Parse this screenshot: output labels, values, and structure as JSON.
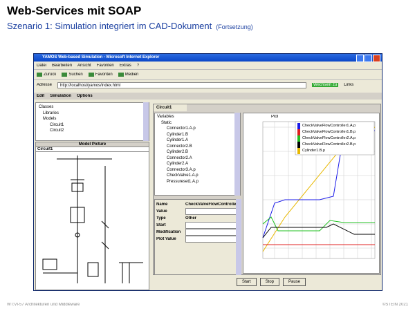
{
  "slide": {
    "title": "Web-Services mit SOAP",
    "subtitle": "Szenario 1: Simulation integriert im CAD-Dokument",
    "subtitle_note": "(Fortsetzung)",
    "footer_left": "WT:VI-57   Architekturen und Middleware",
    "footer_right": "©STEIN 2021"
  },
  "browser": {
    "window_title": "YAMOS Web-based Simulation - Microsoft Internet Explorer",
    "menu": [
      "Datei",
      "Bearbeiten",
      "Ansicht",
      "Favoriten",
      "Extras",
      "?"
    ],
    "toolbar": [
      "Zurück",
      "Suchen",
      "Favoriten",
      "Medien"
    ],
    "address_label": "Adresse",
    "address": "http://localhost/yamos/index.html",
    "go": "Wechseln zu",
    "links": "Links"
  },
  "app": {
    "menu": [
      "Edit",
      "Simulation",
      "Options"
    ],
    "class_tree": [
      "Classes",
      "Libraries",
      "Models",
      "Circuit1",
      "Circuit2"
    ],
    "model_picture": "Model Picture",
    "model_tab": "Circuit1",
    "center_tab": "Circuit1",
    "variable_tree": [
      "Variables",
      "Static",
      "Connector1.A.p",
      "Cylinder1.B",
      "Cylinder1.A",
      "Connector2.B",
      "Cylinder2.B",
      "Connector2.A",
      "Cylinder2.A",
      "Connector3.A.p",
      "CheckValve1.A.p",
      "Pressureset1.A.p"
    ],
    "properties": [
      {
        "label": "Name",
        "value": "CheckValveFlowController1"
      },
      {
        "label": "Value",
        "value": ""
      },
      {
        "label": "Type",
        "value": "Other"
      },
      {
        "label": "Start",
        "value": ""
      },
      {
        "label": "Modification",
        "value": ""
      },
      {
        "label": "Plot Value",
        "value": ""
      }
    ],
    "plot_title": "Plot",
    "legend": [
      "CheckValveFlowController1.A.p",
      "CheckValveFlowController1.B.p",
      "CheckValveFlowController2.A.p",
      "CheckValveFlowController2.B.p",
      "Cylinder1.B.p"
    ],
    "buttons": [
      "Start",
      "Stop",
      "Pause"
    ]
  }
}
